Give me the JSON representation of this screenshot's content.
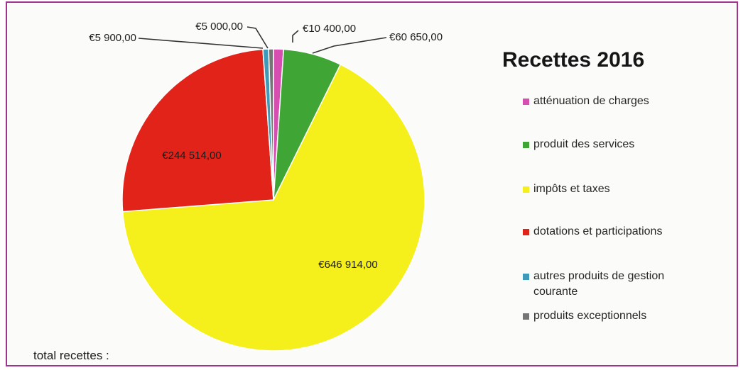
{
  "chart_data": {
    "type": "pie",
    "title": "Recettes 2016",
    "slices": [
      {
        "name": "atténuation de charges",
        "value": 10400,
        "label": "€10 400,00",
        "color": "#d64fb0"
      },
      {
        "name": "produit des services",
        "value": 60650,
        "label": "€60 650,00",
        "color": "#3fa535"
      },
      {
        "name": "impôts et taxes",
        "value": 646914,
        "label": "€646 914,00",
        "color": "#f5ef1c"
      },
      {
        "name": "dotations et participations",
        "value": 244514,
        "label": "€244 514,00",
        "color": "#e2231a"
      },
      {
        "name": "autres produits de gestion courante",
        "value": 5900,
        "label": "€5 900,00",
        "color": "#3e9ab8"
      },
      {
        "name": "produits exceptionnels",
        "value": 5000,
        "label": "€5 000,00",
        "color": "#757575"
      }
    ],
    "legend_position": "right",
    "footer_text": "total recettes :"
  }
}
